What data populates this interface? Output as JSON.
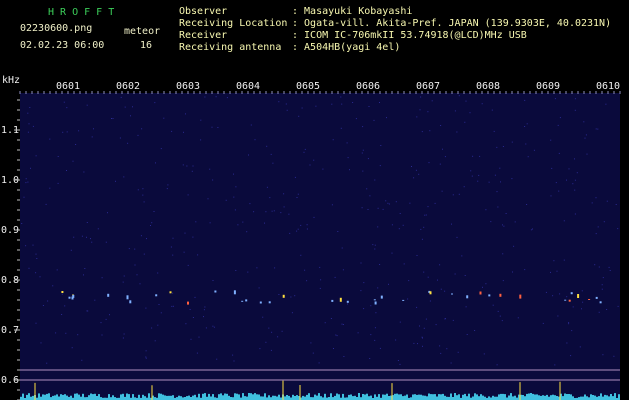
{
  "header": {
    "title": "H R O F F T",
    "filename": "02230600.png",
    "meteor_label": "meteor",
    "datetime": "02.02.23 06:00",
    "meteor_count": "16"
  },
  "info": [
    {
      "label": "Observer",
      "value": ": Masayuki Kobayashi"
    },
    {
      "label": "Receiving Location",
      "value": ": Ogata-vill. Akita-Pref. JAPAN (139.9303E, 40.0231N)"
    },
    {
      "label": "Receiver",
      "value": ": ICOM IC-706mkII 53.74918(@LCD)MHz USB"
    },
    {
      "label": "Receiving antenna",
      "value": ": A504HB(yagi 4el)"
    }
  ],
  "axis": {
    "unit": "kHz",
    "time_labels": [
      "0601",
      "0602",
      "0603",
      "0604",
      "0605",
      "0606",
      "0607",
      "0608",
      "0609",
      "0610"
    ],
    "freq_labels": [
      "1.1",
      "1.0",
      "0.9",
      "0.8",
      "0.7",
      "0.6"
    ]
  }
}
